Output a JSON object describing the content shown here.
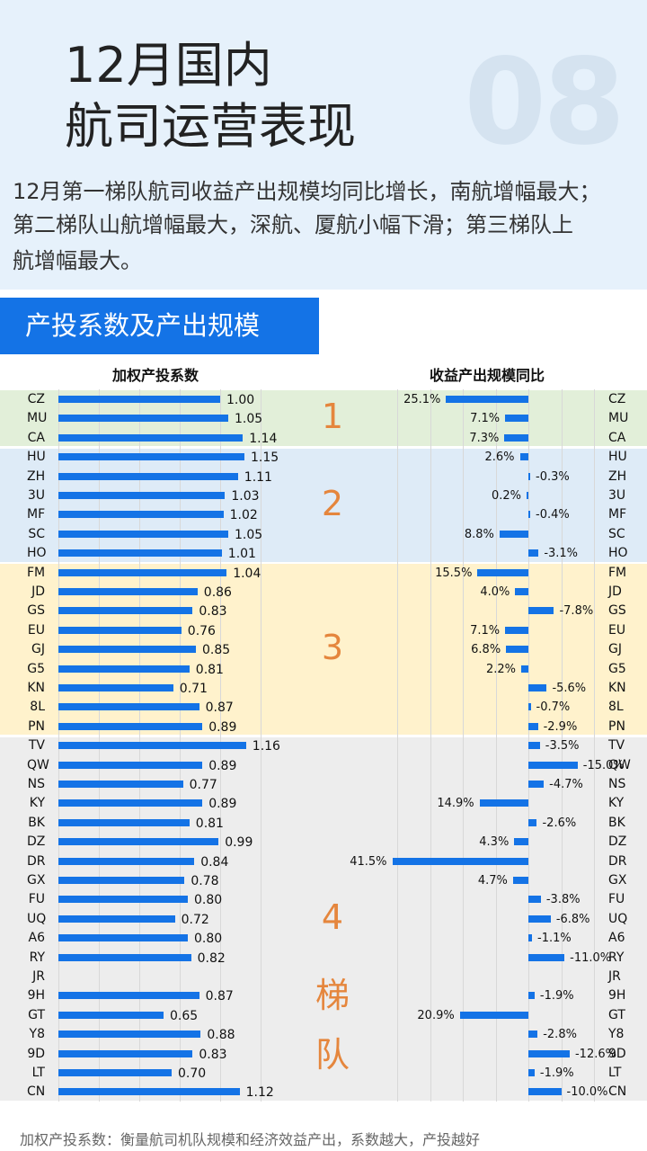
{
  "header": {
    "title_line1": "12月国内",
    "title_line2": "航司运营表现",
    "section_number": "08",
    "desc_line1": "12月第一梯队航司收益产出规模均同比增长，南航增幅最大；",
    "desc_line2": "第二梯队山航增幅最大，深航、厦航小幅下滑；第三梯队上",
    "desc_line3": "航增幅最大。"
  },
  "section": {
    "title": "产投系数及产出规模"
  },
  "footnote": "加权产投系数：衡量航司机队规模和经济效益产出，系数越大，产投越好",
  "colors": {
    "bar": "#1473e6",
    "tier1_bg": "#e2efd9",
    "tier2_bg": "#deebf7",
    "tier3_bg": "#fff2cc",
    "tier4_bg": "#ededed",
    "tier_label": "#e5863d",
    "header_bg": "#e6f1fb",
    "tab_bg": "#1473e6"
  },
  "tiers": [
    {
      "label": "1",
      "start": 0,
      "end": 2
    },
    {
      "label": "2",
      "start": 3,
      "end": 8
    },
    {
      "label": "3",
      "start": 9,
      "end": 17
    },
    {
      "label": "4",
      "start": 18,
      "end": 36,
      "extra_chars": [
        "梯",
        "队"
      ]
    }
  ],
  "chart_data": [
    {
      "type": "bar",
      "orientation": "horizontal",
      "title": "加权产投系数",
      "categories": [
        "CZ",
        "MU",
        "CA",
        "HU",
        "ZH",
        "3U",
        "MF",
        "SC",
        "HO",
        "FM",
        "JD",
        "GS",
        "EU",
        "GJ",
        "G5",
        "KN",
        "8L",
        "PN",
        "TV",
        "QW",
        "NS",
        "KY",
        "BK",
        "DZ",
        "DR",
        "GX",
        "FU",
        "UQ",
        "A6",
        "RY",
        "JR",
        "9H",
        "GT",
        "Y8",
        "9D",
        "LT",
        "CN"
      ],
      "values": [
        1.0,
        1.05,
        1.14,
        1.15,
        1.11,
        1.03,
        1.02,
        1.05,
        1.01,
        1.04,
        0.86,
        0.83,
        0.76,
        0.85,
        0.81,
        0.71,
        0.87,
        0.89,
        1.16,
        0.89,
        0.77,
        0.89,
        0.81,
        0.99,
        0.84,
        0.78,
        0.8,
        0.72,
        0.8,
        0.82,
        null,
        0.87,
        0.65,
        0.88,
        0.83,
        0.7,
        1.12
      ],
      "value_labels": [
        "1.00",
        "1.05",
        "1.14",
        "1.15",
        "1.11",
        "1.03",
        "1.02",
        "1.05",
        "1.01",
        "1.04",
        "0.86",
        "0.83",
        "0.76",
        "0.85",
        "0.81",
        "0.71",
        "0.87",
        "0.89",
        "1.16",
        "0.89",
        "0.77",
        "0.89",
        "0.81",
        "0.99",
        "0.84",
        "0.78",
        "0.80",
        "0.72",
        "0.80",
        "0.82",
        "",
        "0.87",
        "0.65",
        "0.88",
        "0.83",
        "0.70",
        "1.12"
      ],
      "xlim": [
        0,
        1.3
      ],
      "grid": true
    },
    {
      "type": "bar",
      "orientation": "horizontal",
      "reversed": true,
      "title": "收益产出规模同比",
      "categories": [
        "CZ",
        "MU",
        "CA",
        "HU",
        "ZH",
        "3U",
        "MF",
        "SC",
        "HO",
        "FM",
        "JD",
        "GS",
        "EU",
        "GJ",
        "G5",
        "KN",
        "8L",
        "PN",
        "TV",
        "QW",
        "NS",
        "KY",
        "BK",
        "DZ",
        "DR",
        "GX",
        "FU",
        "UQ",
        "A6",
        "RY",
        "JR",
        "9H",
        "GT",
        "Y8",
        "9D",
        "LT",
        "CN"
      ],
      "values": [
        25.1,
        7.1,
        7.3,
        2.6,
        -0.3,
        0.2,
        -0.4,
        8.8,
        -3.1,
        15.5,
        4.0,
        -7.8,
        7.1,
        6.8,
        2.2,
        -5.6,
        -0.7,
        -2.9,
        -3.5,
        -15.0,
        -4.7,
        14.9,
        -2.6,
        4.3,
        41.5,
        4.7,
        -3.8,
        -6.8,
        -1.1,
        -11.0,
        null,
        -1.9,
        20.9,
        -2.8,
        -12.6,
        -1.9,
        -10.0
      ],
      "value_labels": [
        "25.1%",
        "7.1%",
        "7.3%",
        "2.6%",
        "-0.3%",
        "0.2%",
        "-0.4%",
        "8.8%",
        "-3.1%",
        "15.5%",
        "4.0%",
        "-7.8%",
        "7.1%",
        "6.8%",
        "2.2%",
        "-5.6%",
        "-0.7%",
        "-2.9%",
        "-3.5%",
        "-15.0%",
        "-4.7%",
        "14.9%",
        "-2.6%",
        "4.3%",
        "41.5%",
        "4.7%",
        "-3.8%",
        "-6.8%",
        "-1.1%",
        "-11.0%",
        "",
        "-1.9%",
        "20.9%",
        "-2.8%",
        "-12.6%",
        "-1.9%",
        "-10.0%"
      ],
      "xlim": [
        -20,
        45
      ],
      "grid": true
    }
  ]
}
